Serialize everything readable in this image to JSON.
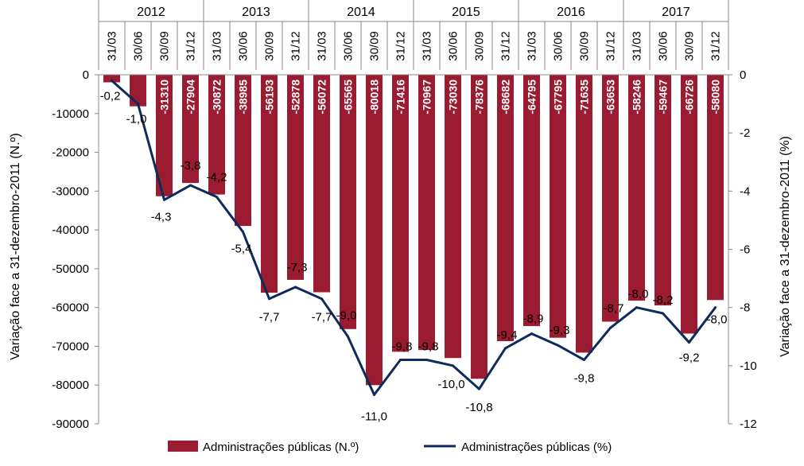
{
  "chart_data": {
    "type": "bar",
    "years": [
      "2012",
      "2013",
      "2014",
      "2015",
      "2016",
      "2017"
    ],
    "categories": [
      "31/03",
      "30/06",
      "30/09",
      "31/12",
      "31/03",
      "30/06",
      "30/09",
      "31/12",
      "31/03",
      "30/06",
      "30/09",
      "31/12",
      "31/03",
      "30/06",
      "30/09",
      "31/12",
      "31/03",
      "30/06",
      "30/09",
      "31/12",
      "31/03",
      "30/06",
      "30/09",
      "31/12"
    ],
    "series": [
      {
        "name": "Administrações públicas (N.º)",
        "type": "bar",
        "axis": "left",
        "color": "#9b1b30",
        "values": [
          -1950,
          -8137,
          -31310,
          -27904,
          -30872,
          -38985,
          -56193,
          -52878,
          -56072,
          -65565,
          -80018,
          -71416,
          -70967,
          -73030,
          -78376,
          -68682,
          -64795,
          -67795,
          -71635,
          -63653,
          -58246,
          -59467,
          -66726,
          -58080
        ],
        "labels": [
          "",
          "",
          "-31310",
          "-27904",
          "-30872",
          "-38985",
          "-56193",
          "-52878",
          "-56072",
          "-65565",
          "-80018",
          "-71416",
          "-70967",
          "-73030",
          "-78376",
          "-68682",
          "-64795",
          "-67795",
          "-71635",
          "-63653",
          "-58246",
          "-59467",
          "-66726",
          "-58080"
        ]
      },
      {
        "name": "Administrações públicas (%)",
        "type": "line",
        "axis": "right",
        "color": "#0f2a5c",
        "values": [
          -0.2,
          -1.0,
          -4.3,
          -3.8,
          -4.2,
          -5.4,
          -7.7,
          -7.3,
          -7.7,
          -9.0,
          -11.0,
          -9.8,
          -9.8,
          -10.0,
          -10.8,
          -9.4,
          -8.9,
          -9.3,
          -9.8,
          -8.7,
          -8.0,
          -8.2,
          -9.2,
          -8.0
        ],
        "labels": [
          "-0,2",
          "-1,0",
          "-4,3",
          "-3,8",
          "-4,2",
          "-5,4",
          "-7,7",
          "-7,3",
          "-7,7",
          "-9,0",
          "-11,0",
          "-9,8",
          "-9,8",
          "-10,0",
          "-10,8",
          "-9,4",
          "-8,9",
          "-9,3",
          "-9,8",
          "-8,7",
          "-8,0",
          "-8,2",
          "-9,2",
          "-8,0"
        ]
      }
    ],
    "y_left": {
      "label": "Variação  face a 31-dezembro-2011 (N.º)",
      "ylim": [
        -90000,
        0
      ],
      "ticks": [
        0,
        -10000,
        -20000,
        -30000,
        -40000,
        -50000,
        -60000,
        -70000,
        -80000,
        -90000
      ],
      "tick_labels": [
        "0",
        "-10000",
        "-20000",
        "-30000",
        "-40000",
        "-50000",
        "-60000",
        "-70000",
        "-80000",
        "-90000"
      ]
    },
    "y_right": {
      "label": "Variação face a 31-dezembro-2011 (%)",
      "ylim": [
        -12,
        0
      ],
      "ticks": [
        0,
        -2,
        -4,
        -6,
        -8,
        -10,
        -12
      ],
      "tick_labels": [
        "0",
        "-2",
        "-4",
        "-6",
        "-8",
        "-10",
        "-12"
      ]
    },
    "legend": {
      "placement": "bottom",
      "entries": [
        "Administrações públicas (N.º)",
        "Administrações públicas (%)"
      ]
    },
    "grid": false
  }
}
